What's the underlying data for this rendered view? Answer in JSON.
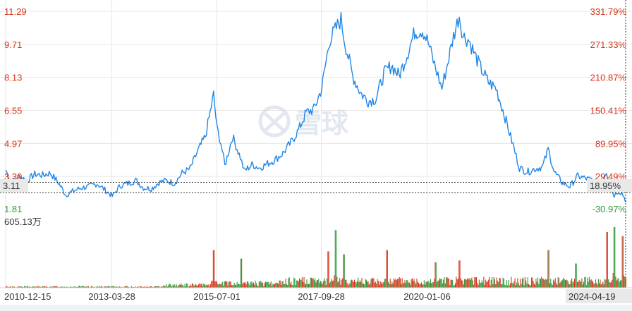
{
  "chart_data": {
    "type": "line",
    "left_axis": {
      "ticks": [
        "11.29",
        "9.71",
        "8.13",
        "6.55",
        "4.97",
        "3.39"
      ],
      "min_label": "1.81",
      "cursor_label": "3.11"
    },
    "right_axis": {
      "ticks": [
        "331.79%",
        "271.33%",
        "210.87%",
        "150.41%",
        "89.95%",
        "29.49%"
      ],
      "min_label": "-30.97%",
      "cursor_label": "18.95%"
    },
    "ylim": [
      1.81,
      11.29
    ],
    "reference_level": 2.61,
    "cursor_value": 3.11,
    "x_ticks": [
      "2010-12-15",
      "2013-03-28",
      "2015-07-01",
      "2017-09-28",
      "2020-01-06"
    ],
    "x_end_label": "2024-04-19",
    "x_range": [
      "2010-12-15",
      "2024-04-19"
    ],
    "series": [
      {
        "values": [
          [
            "2010-12-15",
            3.7
          ],
          [
            "2011-02-01",
            3.1
          ],
          [
            "2011-04-01",
            3.4
          ],
          [
            "2011-06-01",
            3.2
          ],
          [
            "2011-08-01",
            3.5
          ],
          [
            "2011-10-01",
            3.45
          ],
          [
            "2011-12-01",
            3.55
          ],
          [
            "2012-02-01",
            3.1
          ],
          [
            "2012-04-01",
            2.5
          ],
          [
            "2012-06-01",
            2.7
          ],
          [
            "2012-08-01",
            2.85
          ],
          [
            "2012-10-01",
            2.9
          ],
          [
            "2012-12-01",
            3.05
          ],
          [
            "2013-02-01",
            2.75
          ],
          [
            "2013-04-01",
            2.45
          ],
          [
            "2013-06-01",
            2.95
          ],
          [
            "2013-08-01",
            3.05
          ],
          [
            "2013-10-01",
            3.2
          ],
          [
            "2013-12-01",
            2.85
          ],
          [
            "2014-02-01",
            2.8
          ],
          [
            "2014-04-01",
            3.1
          ],
          [
            "2014-06-01",
            3.2
          ],
          [
            "2014-08-01",
            3.05
          ],
          [
            "2014-10-01",
            3.55
          ],
          [
            "2014-12-01",
            3.75
          ],
          [
            "2015-02-01",
            4.6
          ],
          [
            "2015-04-01",
            5.3
          ],
          [
            "2015-05-01",
            6.2
          ],
          [
            "2015-06-05",
            7.3
          ],
          [
            "2015-07-01",
            5.7
          ],
          [
            "2015-08-01",
            5.0
          ],
          [
            "2015-09-01",
            3.9
          ],
          [
            "2015-11-01",
            5.3
          ],
          [
            "2016-01-01",
            4.3
          ],
          [
            "2016-02-01",
            3.65
          ],
          [
            "2016-04-01",
            3.95
          ],
          [
            "2016-06-01",
            3.8
          ],
          [
            "2016-08-01",
            4.0
          ],
          [
            "2016-10-01",
            4.2
          ],
          [
            "2016-12-01",
            4.5
          ],
          [
            "2017-02-01",
            5.0
          ],
          [
            "2017-04-01",
            5.6
          ],
          [
            "2017-06-01",
            6.45
          ],
          [
            "2017-08-01",
            6.6
          ],
          [
            "2017-10-01",
            7.6
          ],
          [
            "2017-12-01",
            9.9
          ],
          [
            "2018-01-15",
            10.4
          ],
          [
            "2018-03-01",
            10.9
          ],
          [
            "2018-04-01",
            9.8
          ],
          [
            "2018-06-01",
            8.2
          ],
          [
            "2018-08-01",
            7.4
          ],
          [
            "2018-10-01",
            7.0
          ],
          [
            "2018-12-01",
            7.1
          ],
          [
            "2019-02-01",
            8.3
          ],
          [
            "2019-04-01",
            8.7
          ],
          [
            "2019-06-01",
            8.2
          ],
          [
            "2019-08-01",
            9.2
          ],
          [
            "2019-10-01",
            10.3
          ],
          [
            "2019-12-01",
            10.4
          ],
          [
            "2020-01-15",
            9.8
          ],
          [
            "2020-02-15",
            9.1
          ],
          [
            "2020-04-01",
            8.2
          ],
          [
            "2020-05-01",
            7.6
          ],
          [
            "2020-06-15",
            8.8
          ],
          [
            "2020-08-01",
            10.1
          ],
          [
            "2020-09-15",
            11.1
          ],
          [
            "2020-10-15",
            10.1
          ],
          [
            "2020-12-01",
            9.9
          ],
          [
            "2021-01-15",
            9.2
          ],
          [
            "2021-03-01",
            8.6
          ],
          [
            "2021-05-01",
            7.9
          ],
          [
            "2021-07-01",
            7.6
          ],
          [
            "2021-09-01",
            6.4
          ],
          [
            "2021-11-01",
            5.1
          ],
          [
            "2022-01-01",
            3.8
          ],
          [
            "2022-03-01",
            3.6
          ],
          [
            "2022-05-01",
            3.75
          ],
          [
            "2022-07-01",
            3.85
          ],
          [
            "2022-08-15",
            4.7
          ],
          [
            "2022-10-01",
            3.6
          ],
          [
            "2022-12-01",
            3.1
          ],
          [
            "2023-02-01",
            2.9
          ],
          [
            "2023-04-01",
            3.4
          ],
          [
            "2023-06-01",
            3.3
          ],
          [
            "2023-08-01",
            3.2
          ],
          [
            "2023-10-01",
            3.05
          ],
          [
            "2023-11-15",
            3.65
          ],
          [
            "2023-12-15",
            2.85
          ],
          [
            "2024-01-15",
            2.5
          ],
          [
            "2024-02-15",
            2.7
          ],
          [
            "2024-03-15",
            2.6
          ],
          [
            "2024-04-19",
            2.2
          ]
        ]
      }
    ],
    "volume": {
      "max_label": "605.13万",
      "max": 605.13
    },
    "colors": {
      "line": "#1f86e6",
      "up": "#d6361b",
      "down": "#2e9a3a",
      "red_text": "#d6361b",
      "green_text": "#2e9a3a",
      "grid": "#e6e6e6"
    },
    "watermark": "雪球"
  }
}
